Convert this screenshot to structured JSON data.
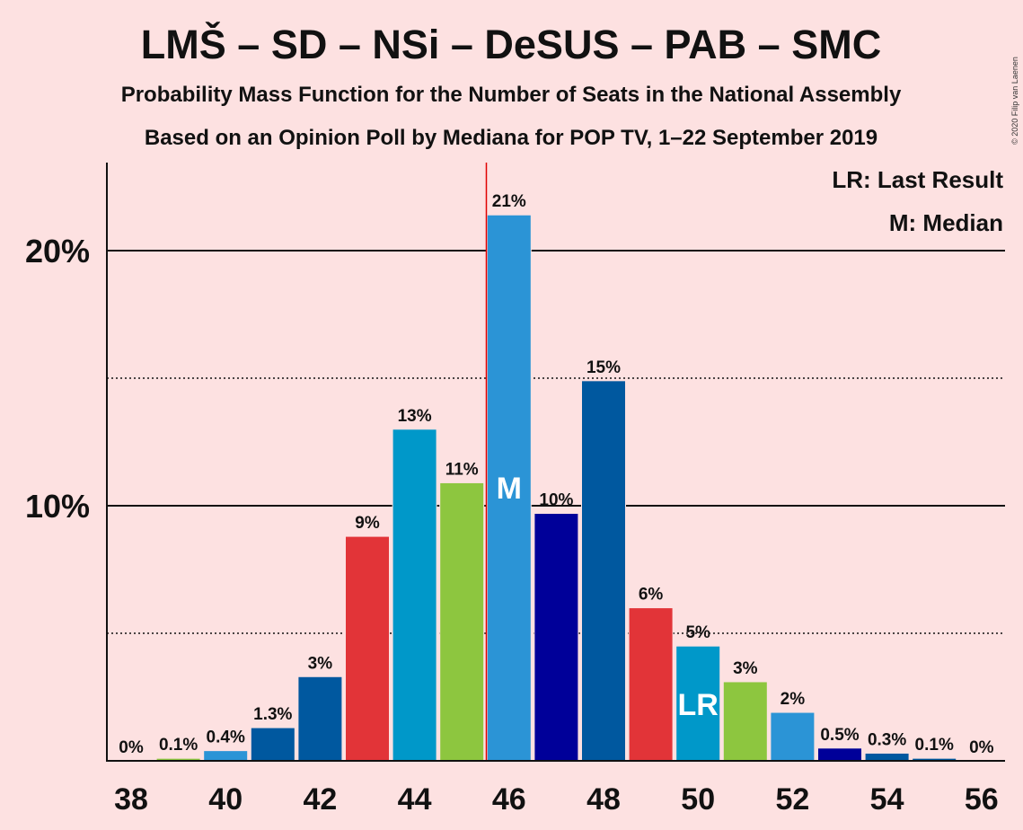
{
  "chart_data": {
    "type": "bar",
    "title": "LMŠ – SD – NSi – DeSUS – PAB – SMC",
    "subtitle1": "Probability Mass Function for the Number of Seats in the National Assembly",
    "subtitle2": "Based on an Opinion Poll by Mediana for POP TV, 1–22 September 2019",
    "credit": "© 2020 Filip van Laenen",
    "legend": {
      "lr": "LR: Last Result",
      "m": "M: Median",
      "placement": "top-right"
    },
    "categories": [
      38,
      39,
      40,
      41,
      42,
      43,
      44,
      45,
      46,
      47,
      48,
      49,
      50,
      51,
      52,
      53,
      54,
      55,
      56
    ],
    "values": [
      0,
      0.1,
      0.4,
      1.3,
      3.3,
      8.8,
      13.0,
      10.9,
      21.4,
      9.7,
      14.9,
      6.0,
      4.5,
      3.1,
      1.9,
      0.5,
      0.3,
      0.1,
      0
    ],
    "labels": [
      "0%",
      "0.1%",
      "0.4%",
      "1.3%",
      "3%",
      "9%",
      "13%",
      "11%",
      "21%",
      "10%",
      "15%",
      "6%",
      "5%",
      "3%",
      "2%",
      "0.5%",
      "0.3%",
      "0.1%",
      "0%"
    ],
    "colors": [
      "#2B94D6",
      "#8DC63F",
      "#2B94D6",
      "#00589F",
      "#00589F",
      "#E23438",
      "#0098C9",
      "#8DC63F",
      "#2B94D6",
      "#000099",
      "#00589F",
      "#E23438",
      "#0098C9",
      "#8DC63F",
      "#2B94D6",
      "#000099",
      "#00589F",
      "#00589F",
      "#00589F"
    ],
    "xticks": [
      38,
      40,
      42,
      44,
      46,
      48,
      50,
      52,
      54,
      56
    ],
    "yticks": [
      {
        "value": 10,
        "label": "10%"
      },
      {
        "value": 20,
        "label": "20%"
      }
    ],
    "minor_gridlines": [
      5,
      15
    ],
    "median": 46,
    "median_marker": "M",
    "last_result": 50,
    "last_result_marker": "LR",
    "ylim": [
      0,
      23.3
    ],
    "xlabel": "",
    "ylabel": ""
  }
}
